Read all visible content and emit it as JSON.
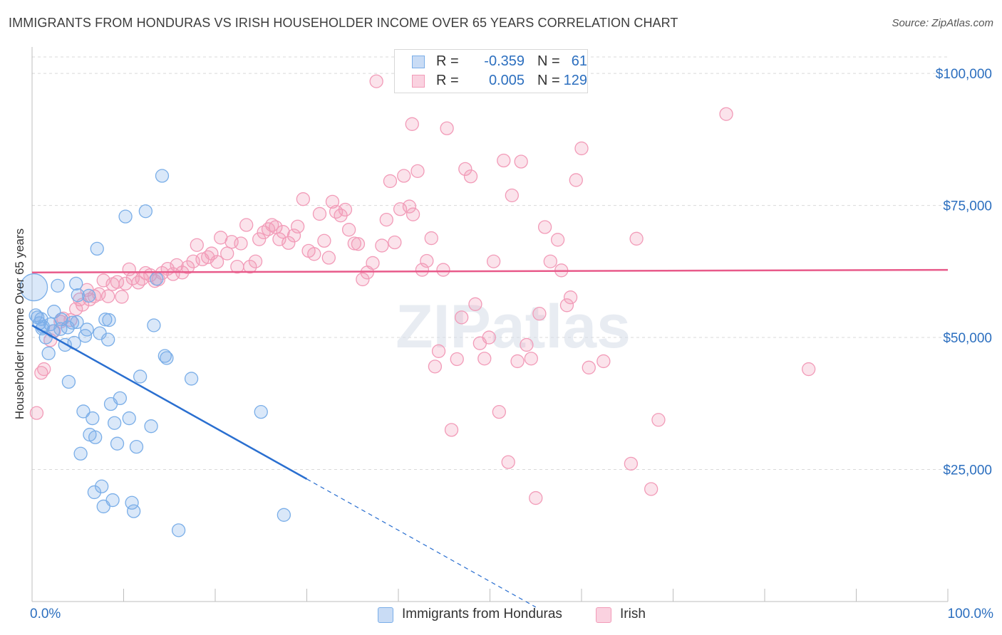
{
  "header": {
    "title": "IMMIGRANTS FROM HONDURAS VS IRISH HOUSEHOLDER INCOME OVER 65 YEARS CORRELATION CHART",
    "source": "Source: ZipAtlas.com"
  },
  "watermark": "ZIPatlas",
  "legend": {
    "rows": [
      {
        "r_label": "R =",
        "r_value": "-0.359",
        "n_label": "N =",
        "n_value": "61",
        "color": "#7aaee8"
      },
      {
        "r_label": "R =",
        "r_value": "0.005",
        "n_label": "N =",
        "n_value": "129",
        "color": "#f29bb8"
      }
    ]
  },
  "bottom_legend": {
    "items": [
      {
        "label": "Immigrants from Honduras",
        "color": "#7aaee8"
      },
      {
        "label": "Irish",
        "color": "#f29bb8"
      }
    ]
  },
  "chart_data": {
    "type": "scatter",
    "title": "IMMIGRANTS FROM HONDURAS VS IRISH HOUSEHOLDER INCOME OVER 65 YEARS CORRELATION CHART",
    "xlabel": "",
    "ylabel": "Householder Income Over 65 years",
    "xlim": [
      0,
      100
    ],
    "ylim": [
      0,
      105000
    ],
    "x_tick_labels": [
      "0.0%",
      "100.0%"
    ],
    "y_ticks": [
      25000,
      50000,
      75000,
      100000
    ],
    "y_tick_labels": [
      "$25,000",
      "$50,000",
      "$75,000",
      "$100,000"
    ],
    "grid": true,
    "series": [
      {
        "name": "Immigrants from Honduras",
        "color": "#7aaee8",
        "line_color": "#2a6fd0",
        "trend": {
          "x0": 0,
          "y0": 52300,
          "x1": 30,
          "y1": 23200,
          "dash_to_x": 55
        },
        "points": [
          [
            0.2,
            59500
          ],
          [
            0.4,
            54200
          ],
          [
            0.6,
            53800
          ],
          [
            0.8,
            52700
          ],
          [
            1.0,
            53500
          ],
          [
            1.2,
            52000
          ],
          [
            1.5,
            50000
          ],
          [
            1.8,
            47000
          ],
          [
            2.0,
            52500
          ],
          [
            2.3,
            51200
          ],
          [
            2.8,
            59800
          ],
          [
            3.2,
            53400
          ],
          [
            3.6,
            48600
          ],
          [
            4.0,
            41600
          ],
          [
            4.4,
            52800
          ],
          [
            4.6,
            49000
          ],
          [
            4.8,
            60200
          ],
          [
            5.0,
            58000
          ],
          [
            5.3,
            28000
          ],
          [
            5.6,
            36000
          ],
          [
            5.8,
            50300
          ],
          [
            6.0,
            51500
          ],
          [
            6.3,
            31600
          ],
          [
            6.6,
            34700
          ],
          [
            6.8,
            20700
          ],
          [
            6.9,
            31100
          ],
          [
            7.1,
            66800
          ],
          [
            7.4,
            50800
          ],
          [
            7.6,
            21800
          ],
          [
            7.8,
            18000
          ],
          [
            8.0,
            53400
          ],
          [
            8.3,
            49600
          ],
          [
            8.6,
            37400
          ],
          [
            8.8,
            19200
          ],
          [
            9.0,
            33800
          ],
          [
            9.3,
            29900
          ],
          [
            9.6,
            38500
          ],
          [
            10.2,
            72900
          ],
          [
            10.6,
            34700
          ],
          [
            10.9,
            18700
          ],
          [
            11.1,
            17100
          ],
          [
            11.4,
            29300
          ],
          [
            11.8,
            42600
          ],
          [
            12.4,
            73900
          ],
          [
            13.0,
            33200
          ],
          [
            13.3,
            52300
          ],
          [
            13.6,
            61100
          ],
          [
            14.2,
            80600
          ],
          [
            14.5,
            46500
          ],
          [
            14.7,
            46100
          ],
          [
            16.0,
            13500
          ],
          [
            17.4,
            42200
          ],
          [
            25.0,
            35900
          ],
          [
            27.5,
            16400
          ],
          [
            2.4,
            54900
          ],
          [
            3.9,
            51900
          ],
          [
            1.1,
            51700
          ],
          [
            4.9,
            52900
          ],
          [
            6.2,
            57900
          ],
          [
            8.4,
            53300
          ],
          [
            3.1,
            51600
          ]
        ],
        "large_point_index": 0
      },
      {
        "name": "Irish",
        "color": "#f29bb8",
        "line_color": "#e85a8a",
        "trend": {
          "x0": 0,
          "y0": 62300,
          "x1": 100,
          "y1": 62800
        },
        "points": [
          [
            0.5,
            35700
          ],
          [
            1.0,
            43300
          ],
          [
            1.3,
            44000
          ],
          [
            2.0,
            49500
          ],
          [
            2.4,
            51200
          ],
          [
            3.1,
            53000
          ],
          [
            3.4,
            53600
          ],
          [
            4.2,
            53300
          ],
          [
            4.8,
            55400
          ],
          [
            5.2,
            57200
          ],
          [
            5.5,
            56200
          ],
          [
            6.0,
            59000
          ],
          [
            6.3,
            57200
          ],
          [
            6.8,
            57800
          ],
          [
            7.3,
            58200
          ],
          [
            7.8,
            60800
          ],
          [
            8.3,
            57800
          ],
          [
            8.8,
            60100
          ],
          [
            9.3,
            60500
          ],
          [
            9.8,
            57700
          ],
          [
            10.2,
            60200
          ],
          [
            10.6,
            62900
          ],
          [
            11.0,
            61200
          ],
          [
            11.6,
            60400
          ],
          [
            12.0,
            61100
          ],
          [
            12.4,
            62200
          ],
          [
            12.9,
            61800
          ],
          [
            13.4,
            60700
          ],
          [
            13.8,
            61000
          ],
          [
            14.2,
            62200
          ],
          [
            14.8,
            63000
          ],
          [
            15.4,
            62000
          ],
          [
            15.8,
            63700
          ],
          [
            16.4,
            62300
          ],
          [
            17.0,
            63300
          ],
          [
            17.6,
            64400
          ],
          [
            18.0,
            67500
          ],
          [
            18.6,
            64800
          ],
          [
            19.2,
            65200
          ],
          [
            19.6,
            65900
          ],
          [
            20.2,
            64300
          ],
          [
            20.6,
            68900
          ],
          [
            21.3,
            65900
          ],
          [
            21.8,
            68100
          ],
          [
            22.4,
            63400
          ],
          [
            22.8,
            67800
          ],
          [
            23.4,
            71300
          ],
          [
            23.8,
            63400
          ],
          [
            24.4,
            64400
          ],
          [
            24.8,
            68600
          ],
          [
            25.3,
            69900
          ],
          [
            25.8,
            70500
          ],
          [
            26.2,
            71300
          ],
          [
            26.6,
            70900
          ],
          [
            27.0,
            68600
          ],
          [
            27.4,
            70000
          ],
          [
            28.0,
            67900
          ],
          [
            28.6,
            69300
          ],
          [
            29.0,
            71000
          ],
          [
            29.6,
            76200
          ],
          [
            30.2,
            66400
          ],
          [
            30.8,
            65800
          ],
          [
            31.4,
            73400
          ],
          [
            31.9,
            68300
          ],
          [
            32.4,
            65100
          ],
          [
            32.8,
            75700
          ],
          [
            33.2,
            73800
          ],
          [
            33.7,
            73100
          ],
          [
            34.2,
            74200
          ],
          [
            34.6,
            70400
          ],
          [
            35.2,
            67800
          ],
          [
            35.6,
            67700
          ],
          [
            36.1,
            61000
          ],
          [
            36.6,
            62300
          ],
          [
            37.2,
            64100
          ],
          [
            37.6,
            98500
          ],
          [
            38.2,
            67400
          ],
          [
            38.7,
            72300
          ],
          [
            39.1,
            79600
          ],
          [
            39.6,
            68000
          ],
          [
            40.2,
            74300
          ],
          [
            40.6,
            80600
          ],
          [
            41.2,
            74800
          ],
          [
            41.6,
            73300
          ],
          [
            42.1,
            81500
          ],
          [
            42.6,
            62800
          ],
          [
            43.1,
            64500
          ],
          [
            43.6,
            68800
          ],
          [
            44.0,
            44500
          ],
          [
            44.4,
            47400
          ],
          [
            44.9,
            62800
          ],
          [
            45.3,
            89600
          ],
          [
            45.8,
            32500
          ],
          [
            46.4,
            45900
          ],
          [
            46.9,
            53800
          ],
          [
            47.3,
            81900
          ],
          [
            47.9,
            80500
          ],
          [
            48.4,
            56300
          ],
          [
            48.9,
            48900
          ],
          [
            49.4,
            46000
          ],
          [
            49.9,
            50000
          ],
          [
            50.4,
            64400
          ],
          [
            51.0,
            35900
          ],
          [
            51.5,
            83500
          ],
          [
            52.0,
            26400
          ],
          [
            52.4,
            76900
          ],
          [
            53.0,
            45500
          ],
          [
            53.4,
            83300
          ],
          [
            54.0,
            48600
          ],
          [
            54.5,
            46000
          ],
          [
            55.0,
            19600
          ],
          [
            55.4,
            54500
          ],
          [
            56.0,
            70900
          ],
          [
            56.6,
            64400
          ],
          [
            57.4,
            68500
          ],
          [
            57.8,
            62700
          ],
          [
            58.4,
            56100
          ],
          [
            58.8,
            57600
          ],
          [
            59.4,
            79800
          ],
          [
            60.0,
            85800
          ],
          [
            60.8,
            44300
          ],
          [
            62.4,
            45500
          ],
          [
            65.4,
            26100
          ],
          [
            66.0,
            68700
          ],
          [
            67.6,
            21300
          ],
          [
            68.4,
            34400
          ],
          [
            75.8,
            92300
          ],
          [
            84.8,
            44000
          ],
          [
            41.5,
            90400
          ]
        ]
      }
    ]
  }
}
